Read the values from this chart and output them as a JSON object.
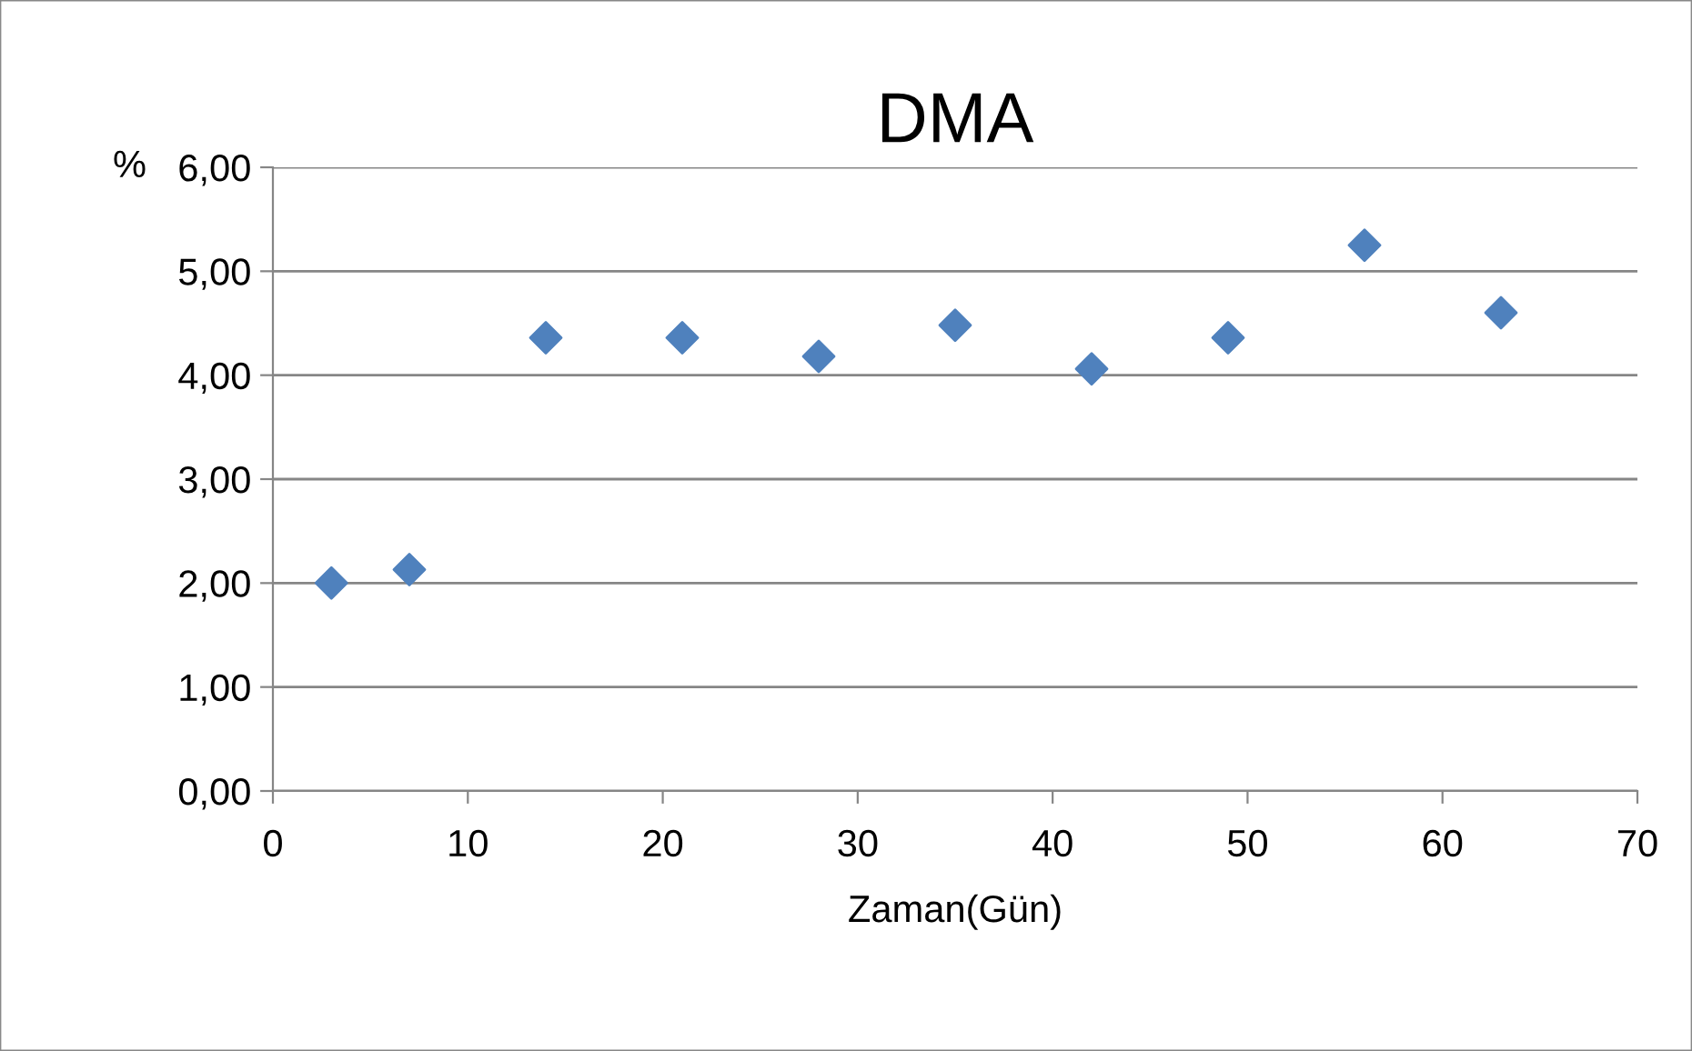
{
  "chart_data": {
    "type": "scatter",
    "title": "DMA",
    "xlabel": "Zaman(Gün)",
    "ylabel": "%",
    "x": [
      3,
      7,
      14,
      21,
      28,
      35,
      42,
      49,
      56,
      63
    ],
    "series": [
      {
        "color": "#4f81bd",
        "values": [
          2.0,
          2.13,
          4.36,
          4.36,
          4.18,
          4.48,
          4.06,
          4.36,
          5.25,
          4.6
        ]
      }
    ],
    "xlim": [
      0,
      70
    ],
    "xticks": [
      0,
      10,
      20,
      30,
      40,
      50,
      60,
      70
    ],
    "ylim": [
      0,
      6
    ],
    "yticks": [
      {
        "value": 0,
        "label": "0,00"
      },
      {
        "value": 1,
        "label": "1,00"
      },
      {
        "value": 2,
        "label": "2,00"
      },
      {
        "value": 3,
        "label": "3,00"
      },
      {
        "value": 4,
        "label": "4,00"
      },
      {
        "value": 5,
        "label": "5,00"
      },
      {
        "value": 6,
        "label": "6,00"
      }
    ],
    "grid": "y",
    "marker": "diamond",
    "legend": false
  }
}
